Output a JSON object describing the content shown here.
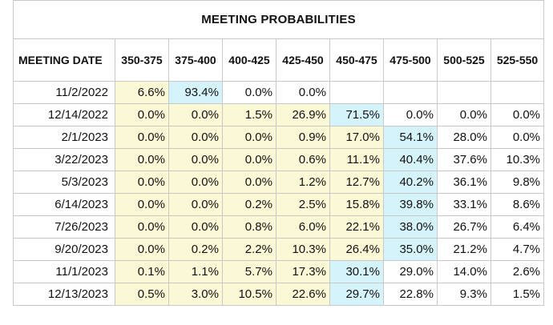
{
  "title": "MEETING PROBABILITIES",
  "columns": [
    "MEETING DATE",
    "350-375",
    "375-400",
    "400-425",
    "425-450",
    "450-475",
    "475-500",
    "500-525",
    "525-550"
  ],
  "rows": [
    {
      "date": "11/2/2022",
      "values": [
        "6.6%",
        "93.4%",
        "0.0%",
        "0.0%",
        "",
        "",
        "",
        ""
      ],
      "shade": [
        "y",
        "b",
        "w",
        "w",
        "w",
        "w",
        "w",
        "w"
      ]
    },
    {
      "date": "12/14/2022",
      "values": [
        "0.0%",
        "0.0%",
        "1.5%",
        "26.9%",
        "71.5%",
        "0.0%",
        "0.0%",
        "0.0%"
      ],
      "shade": [
        "y",
        "y",
        "y",
        "y",
        "b",
        "w",
        "w",
        "w"
      ]
    },
    {
      "date": "2/1/2023",
      "values": [
        "0.0%",
        "0.0%",
        "0.0%",
        "0.9%",
        "17.0%",
        "54.1%",
        "28.0%",
        "0.0%"
      ],
      "shade": [
        "y",
        "y",
        "y",
        "y",
        "y",
        "b",
        "w",
        "w"
      ]
    },
    {
      "date": "3/22/2023",
      "values": [
        "0.0%",
        "0.0%",
        "0.0%",
        "0.6%",
        "11.1%",
        "40.4%",
        "37.6%",
        "10.3%"
      ],
      "shade": [
        "y",
        "y",
        "y",
        "y",
        "y",
        "b",
        "w",
        "w"
      ]
    },
    {
      "date": "5/3/2023",
      "values": [
        "0.0%",
        "0.0%",
        "0.0%",
        "1.2%",
        "12.7%",
        "40.2%",
        "36.1%",
        "9.8%"
      ],
      "shade": [
        "y",
        "y",
        "y",
        "y",
        "y",
        "b",
        "w",
        "w"
      ]
    },
    {
      "date": "6/14/2023",
      "values": [
        "0.0%",
        "0.0%",
        "0.2%",
        "2.5%",
        "15.8%",
        "39.8%",
        "33.1%",
        "8.6%"
      ],
      "shade": [
        "y",
        "y",
        "y",
        "y",
        "y",
        "b",
        "w",
        "w"
      ]
    },
    {
      "date": "7/26/2023",
      "values": [
        "0.0%",
        "0.0%",
        "0.8%",
        "6.0%",
        "22.1%",
        "38.0%",
        "26.7%",
        "6.4%"
      ],
      "shade": [
        "y",
        "y",
        "y",
        "y",
        "y",
        "b",
        "w",
        "w"
      ]
    },
    {
      "date": "9/20/2023",
      "values": [
        "0.0%",
        "0.2%",
        "2.2%",
        "10.3%",
        "26.4%",
        "35.0%",
        "21.2%",
        "4.7%"
      ],
      "shade": [
        "y",
        "y",
        "y",
        "y",
        "y",
        "b",
        "w",
        "w"
      ]
    },
    {
      "date": "11/1/2023",
      "values": [
        "0.1%",
        "1.1%",
        "5.7%",
        "17.3%",
        "30.1%",
        "29.0%",
        "14.0%",
        "2.6%"
      ],
      "shade": [
        "y",
        "y",
        "y",
        "y",
        "b",
        "w",
        "w",
        "w"
      ]
    },
    {
      "date": "12/13/2023",
      "values": [
        "0.5%",
        "3.0%",
        "10.5%",
        "22.6%",
        "29.7%",
        "22.8%",
        "9.3%",
        "1.5%"
      ],
      "shade": [
        "y",
        "y",
        "y",
        "y",
        "b",
        "w",
        "w",
        "w"
      ]
    }
  ],
  "colors": {
    "current_range": "#fbf8d6",
    "highest_probability": "#d5f3fa",
    "border": "#c8c8c8"
  }
}
